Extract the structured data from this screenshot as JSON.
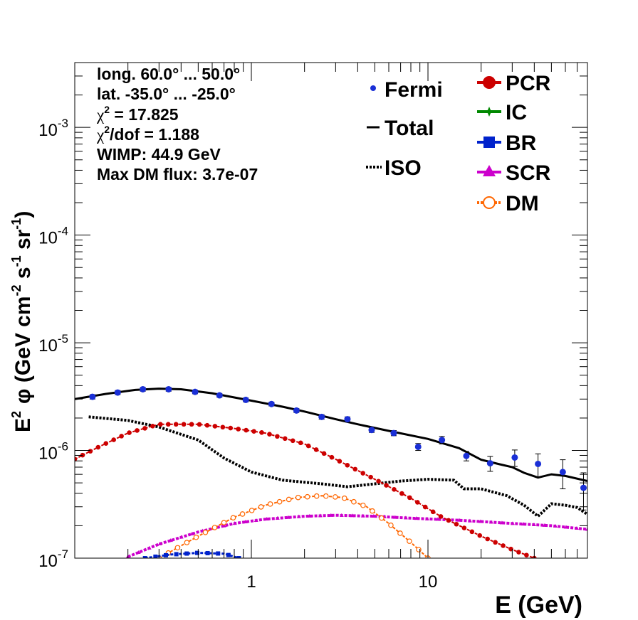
{
  "chart_data": {
    "type": "line",
    "xlabel": "E (GeV)",
    "ylabel_parts": {
      "e": "E",
      "e_sup": "2",
      "phi": "φ (GeV cm",
      "cm_sup": "-2",
      "s": " s",
      "s_sup": "-1",
      "sr": " sr",
      "sr_sup": "-1",
      "close": ")"
    },
    "x_scale": "log",
    "y_scale": "log",
    "xlim": [
      0.1,
      80
    ],
    "ylim": [
      1e-07,
      0.004
    ],
    "x_tick_labels": [
      {
        "value": 1,
        "label": "1"
      },
      {
        "value": 10,
        "label": "10"
      }
    ],
    "y_tick_labels": [
      {
        "value": 1e-07,
        "base": "10",
        "exp": "-7"
      },
      {
        "value": 1e-06,
        "base": "10",
        "exp": "-6"
      },
      {
        "value": 1e-05,
        "base": "10",
        "exp": "-5"
      },
      {
        "value": 0.0001,
        "base": "10",
        "exp": "-4"
      },
      {
        "value": 0.001,
        "base": "10",
        "exp": "-3"
      }
    ],
    "info_lines": [
      {
        "text": "long. 60.0° ... 50.0°"
      },
      {
        "text": "lat. -35.0° ... -25.0°"
      },
      {
        "chi": "χ",
        "sup": "2",
        "text": " = 17.825"
      },
      {
        "chi": "χ",
        "sup": "2",
        "text": "/dof = 1.188"
      },
      {
        "text": "WIMP: 44.9 GeV"
      },
      {
        "text": "Max DM flux: 3.7e-07"
      }
    ],
    "legend": {
      "left": [
        {
          "key": "fermi",
          "label": "Fermi"
        },
        {
          "key": "total",
          "label": "Total"
        },
        {
          "key": "iso",
          "label": "ISO"
        }
      ],
      "right": [
        {
          "key": "pcr",
          "label": "PCR"
        },
        {
          "key": "ic",
          "label": "IC"
        },
        {
          "key": "br",
          "label": "BR"
        },
        {
          "key": "scr",
          "label": "SCR"
        },
        {
          "key": "dm",
          "label": "DM"
        }
      ]
    },
    "colors": {
      "fermi": "#1a2fd6",
      "total": "#000000",
      "iso": "#000000",
      "pcr": "#cc0000",
      "ic": "#008800",
      "br": "#0022cc",
      "scr": "#cc00cc",
      "dm": "#ff6600"
    },
    "fermi": [
      {
        "x": 0.126,
        "y": 3.15e-06,
        "yerr": 1.5e-07
      },
      {
        "x": 0.175,
        "y": 3.45e-06,
        "yerr": 1.5e-07
      },
      {
        "x": 0.243,
        "y": 3.7e-06,
        "yerr": 1.5e-07
      },
      {
        "x": 0.34,
        "y": 3.7e-06,
        "yerr": 1.5e-07
      },
      {
        "x": 0.48,
        "y": 3.5e-06,
        "yerr": 1.4e-07
      },
      {
        "x": 0.66,
        "y": 3.25e-06,
        "yerr": 1.3e-07
      },
      {
        "x": 0.93,
        "y": 2.95e-06,
        "yerr": 1.2e-07
      },
      {
        "x": 1.3,
        "y": 2.7e-06,
        "yerr": 1.1e-07
      },
      {
        "x": 1.8,
        "y": 2.35e-06,
        "yerr": 1e-07
      },
      {
        "x": 2.5,
        "y": 2.05e-06,
        "yerr": 1e-07
      },
      {
        "x": 3.5,
        "y": 1.95e-06,
        "yerr": 1e-07
      },
      {
        "x": 4.8,
        "y": 1.55e-06,
        "yerr": 8e-08
      },
      {
        "x": 6.4,
        "y": 1.45e-06,
        "yerr": 8e-08
      },
      {
        "x": 8.8,
        "y": 1.08e-06,
        "yerr": 8e-08
      },
      {
        "x": 12.0,
        "y": 1.25e-06,
        "yerr": 1e-07
      },
      {
        "x": 16.5,
        "y": 8.9e-07,
        "yerr": 9e-08
      },
      {
        "x": 22.5,
        "y": 7.6e-07,
        "yerr": 1.2e-07
      },
      {
        "x": 31.0,
        "y": 8.6e-07,
        "yerr": 1.5e-07
      },
      {
        "x": 42.0,
        "y": 7.5e-07,
        "yerr": 1.8e-07
      },
      {
        "x": 58.0,
        "y": 6.3e-07,
        "yerr": 1.9e-07
      },
      {
        "x": 76.0,
        "y": 4.5e-07,
        "yerr": 1.7e-07
      }
    ],
    "total": [
      [
        0.1,
        3e-06
      ],
      [
        0.15,
        3.35e-06
      ],
      [
        0.22,
        3.65e-06
      ],
      [
        0.3,
        3.75e-06
      ],
      [
        0.4,
        3.7e-06
      ],
      [
        0.6,
        3.4e-06
      ],
      [
        1.0,
        2.9e-06
      ],
      [
        1.5,
        2.55e-06
      ],
      [
        2.0,
        2.3e-06
      ],
      [
        3.0,
        1.95e-06
      ],
      [
        4.0,
        1.75e-06
      ],
      [
        6.0,
        1.52e-06
      ],
      [
        10.0,
        1.28e-06
      ],
      [
        15.0,
        1.05e-06
      ],
      [
        20.0,
        8.2e-07
      ],
      [
        25.0,
        7.5e-07
      ],
      [
        30.0,
        7e-07
      ],
      [
        35.0,
        6.2e-07
      ],
      [
        42.0,
        5.6e-07
      ],
      [
        50.0,
        6e-07
      ],
      [
        60.0,
        5.8e-07
      ],
      [
        80.0,
        5.2e-07
      ]
    ],
    "iso": [
      [
        0.12,
        2.05e-06
      ],
      [
        0.2,
        1.9e-06
      ],
      [
        0.3,
        1.65e-06
      ],
      [
        0.5,
        1.25e-06
      ],
      [
        0.7,
        8.5e-07
      ],
      [
        1.0,
        6.3e-07
      ],
      [
        1.5,
        5.3e-07
      ],
      [
        2.5,
        4.9e-07
      ],
      [
        3.5,
        4.6e-07
      ],
      [
        5.0,
        4.9e-07
      ],
      [
        7.0,
        5.2e-07
      ],
      [
        10.0,
        5.4e-07
      ],
      [
        14.0,
        5.3e-07
      ],
      [
        16.0,
        4.4e-07
      ],
      [
        20.0,
        4.4e-07
      ],
      [
        28.0,
        3.8e-07
      ],
      [
        35.0,
        3.1e-07
      ],
      [
        42.0,
        2.45e-07
      ],
      [
        50.0,
        3.2e-07
      ],
      [
        60.0,
        3.1e-07
      ],
      [
        70.0,
        2.95e-07
      ],
      [
        80.0,
        2.55e-07
      ]
    ],
    "pcr": [
      [
        0.1,
        8.3e-07
      ],
      [
        0.14,
        1.1e-06
      ],
      [
        0.2,
        1.45e-06
      ],
      [
        0.3,
        1.75e-06
      ],
      [
        0.5,
        1.75e-06
      ],
      [
        0.8,
        1.6e-06
      ],
      [
        1.2,
        1.45e-06
      ],
      [
        2.0,
        1.15e-06
      ],
      [
        3.0,
        8.3e-07
      ],
      [
        5.0,
        5.4e-07
      ],
      [
        8.0,
        3.6e-07
      ],
      [
        12.0,
        2.4e-07
      ],
      [
        20.0,
        1.6e-07
      ],
      [
        30.0,
        1.2e-07
      ],
      [
        40.0,
        1e-07
      ]
    ],
    "scr": [
      [
        0.2,
        1.03e-07
      ],
      [
        0.3,
        1.35e-07
      ],
      [
        0.5,
        1.75e-07
      ],
      [
        0.8,
        2.1e-07
      ],
      [
        1.2,
        2.3e-07
      ],
      [
        2.0,
        2.45e-07
      ],
      [
        3.0,
        2.5e-07
      ],
      [
        5.0,
        2.45e-07
      ],
      [
        8.0,
        2.35e-07
      ],
      [
        15.0,
        2.25e-07
      ],
      [
        30.0,
        2.1e-07
      ],
      [
        50.0,
        2e-07
      ],
      [
        80.0,
        1.85e-07
      ]
    ],
    "dm": [
      [
        0.3,
        1e-07
      ],
      [
        0.5,
        1.6e-07
      ],
      [
        0.8,
        2.4e-07
      ],
      [
        1.2,
        3.1e-07
      ],
      [
        1.8,
        3.65e-07
      ],
      [
        2.5,
        3.8e-07
      ],
      [
        3.3,
        3.65e-07
      ],
      [
        4.5,
        3e-07
      ],
      [
        6.0,
        2.1e-07
      ],
      [
        8.0,
        1.4e-07
      ],
      [
        10.0,
        1e-07
      ]
    ],
    "br": [
      [
        0.25,
        1e-07
      ],
      [
        0.35,
        1.08e-07
      ],
      [
        0.5,
        1.12e-07
      ],
      [
        0.7,
        1.1e-07
      ],
      [
        0.85,
        1e-07
      ]
    ],
    "ic": []
  }
}
